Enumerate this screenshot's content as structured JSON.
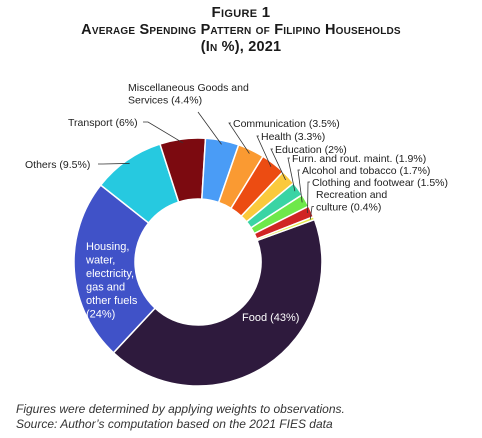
{
  "figure": {
    "label": "Figure 1",
    "title_line1": "Average Spending Pattern of Filipino Households",
    "title_line2": "(In %), 2021"
  },
  "chart_data": {
    "type": "pie",
    "donut": true,
    "unit": "%",
    "slices": [
      {
        "name": "Food",
        "value": 43,
        "color": "#2e1a3d",
        "label_lines": [
          "Food (43%)"
        ]
      },
      {
        "name": "Housing, water, electricity, gas and other fuels",
        "value": 24,
        "color": "#4052c8",
        "label_lines": [
          "Housing,",
          "water,",
          "electricity,",
          "gas and",
          "other fuels",
          "(24%)"
        ]
      },
      {
        "name": "Others",
        "value": 9.5,
        "color": "#26c9e0",
        "label_lines": [
          "Others (9.5%)"
        ]
      },
      {
        "name": "Transport",
        "value": 6,
        "color": "#7c0a10",
        "label_lines": [
          "Transport (6%)"
        ]
      },
      {
        "name": "Miscellaneous Goods and Services",
        "value": 4.4,
        "color": "#4a9cf6",
        "label_lines": [
          "Miscellaneous Goods and",
          "Services (4.4%)"
        ]
      },
      {
        "name": "Communication",
        "value": 3.5,
        "color": "#fa9a32",
        "label_lines": [
          "Communication (3.5%)"
        ]
      },
      {
        "name": "Health",
        "value": 3.3,
        "color": "#ec4c12",
        "label_lines": [
          "Health (3.3%)"
        ]
      },
      {
        "name": "Education",
        "value": 2,
        "color": "#fbc93c",
        "label_lines": [
          "Education (2%)"
        ]
      },
      {
        "name": "Furn. and rout. maint.",
        "value": 1.9,
        "color": "#3ad4a4",
        "label_lines": [
          "Furn. and rout. maint. (1.9%)"
        ]
      },
      {
        "name": "Alcohol and tobacco",
        "value": 1.7,
        "color": "#6ee84a",
        "label_lines": [
          "Alcohol and tobacco (1.7%)"
        ]
      },
      {
        "name": "Clothing and footwear",
        "value": 1.5,
        "color": "#d02424",
        "label_lines": [
          "Clothing and footwear (1.5%)"
        ]
      },
      {
        "name": "Recreation and culture",
        "value": 0.4,
        "color": "#e2ea46",
        "label_lines": [
          "Recreation and",
          "culture (0.4%)"
        ]
      }
    ]
  },
  "notes": {
    "line1": "Figures were determined by applying weights to observations.",
    "line2": "Source: Author’s computation based on the 2021 FIES data"
  }
}
